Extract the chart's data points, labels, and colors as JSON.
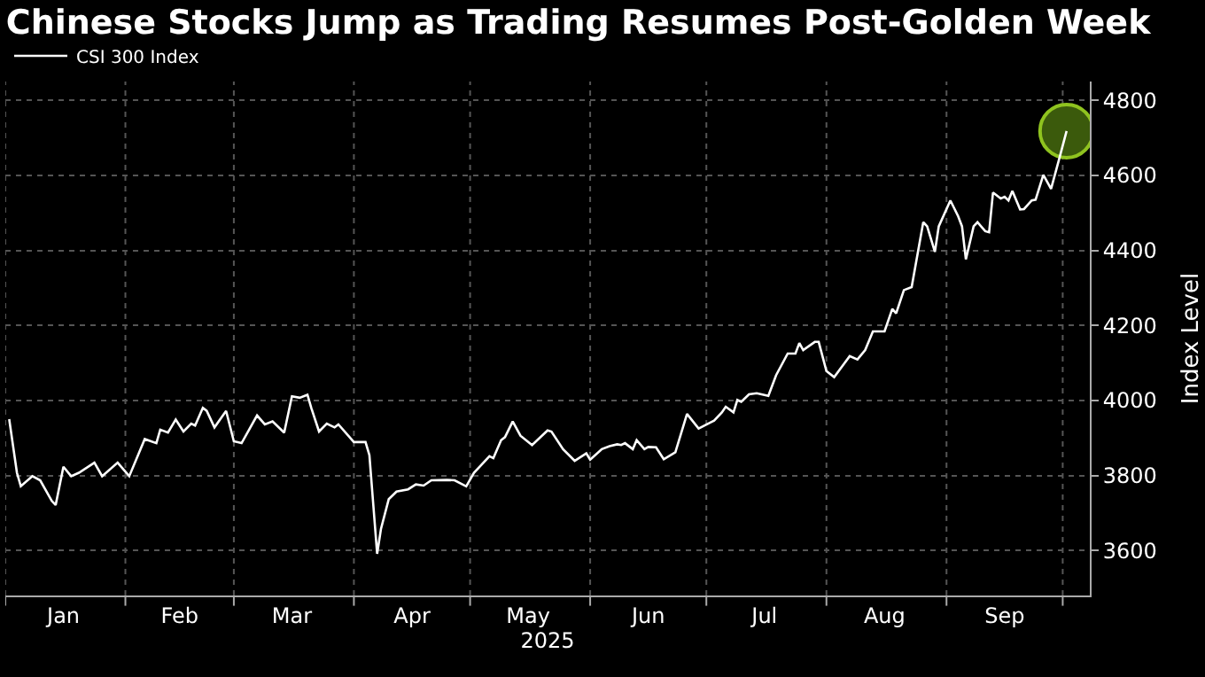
{
  "chart_data": {
    "type": "line",
    "title": "Chinese Stocks Jump as Trading Resumes Post-Golden Week",
    "xlabel": "2025",
    "ylabel": "Index Level",
    "legend": "top left",
    "grid": true,
    "marker": "none",
    "line_style": "solid",
    "xlim": [
      "2025-01-01",
      "2025-10-08"
    ],
    "xticks": [
      {
        "value": "2025-01-01",
        "label": null
      },
      {
        "value": "2025-01-16",
        "label": "Jan"
      },
      {
        "value": "2025-02-01",
        "label": null
      },
      {
        "value": "2025-02-15",
        "label": "Feb"
      },
      {
        "value": "2025-03-01",
        "label": null
      },
      {
        "value": "2025-03-16",
        "label": "Mar"
      },
      {
        "value": "2025-04-01",
        "label": null
      },
      {
        "value": "2025-04-16",
        "label": "Apr"
      },
      {
        "value": "2025-05-01",
        "label": null
      },
      {
        "value": "2025-05-16",
        "label": "May"
      },
      {
        "value": "2025-06-01",
        "label": null
      },
      {
        "value": "2025-06-16",
        "label": "Jun"
      },
      {
        "value": "2025-07-01",
        "label": null
      },
      {
        "value": "2025-07-16",
        "label": "Jul"
      },
      {
        "value": "2025-08-01",
        "label": null
      },
      {
        "value": "2025-08-16",
        "label": "Aug"
      },
      {
        "value": "2025-09-01",
        "label": null
      },
      {
        "value": "2025-09-16",
        "label": "Sep"
      },
      {
        "value": "2025-10-01",
        "label": null
      }
    ],
    "ylim": [
      3480,
      4850
    ],
    "yticks": [
      3600,
      3800,
      4000,
      4200,
      4400,
      4600,
      4800
    ],
    "series": [
      {
        "name": "CSI 300 Index",
        "color": "#ffffff",
        "x": [
          "2025-01-02",
          "2025-01-04",
          "2025-01-05",
          "2025-01-08",
          "2025-01-10",
          "2025-01-13",
          "2025-01-14",
          "2025-01-16",
          "2025-01-18",
          "2025-01-20",
          "2025-01-24",
          "2025-01-26",
          "2025-01-30",
          "2025-02-02",
          "2025-02-06",
          "2025-02-09",
          "2025-02-10",
          "2025-02-12",
          "2025-02-14",
          "2025-02-16",
          "2025-02-18",
          "2025-02-19",
          "2025-02-21",
          "2025-02-22",
          "2025-02-24",
          "2025-02-27",
          "2025-03-01",
          "2025-03-03",
          "2025-03-07",
          "2025-03-09",
          "2025-03-11",
          "2025-03-14",
          "2025-03-16",
          "2025-03-18",
          "2025-03-20",
          "2025-03-21",
          "2025-03-23",
          "2025-03-25",
          "2025-03-27",
          "2025-03-28",
          "2025-04-01",
          "2025-04-04",
          "2025-04-05",
          "2025-04-07",
          "2025-04-08",
          "2025-04-10",
          "2025-04-12",
          "2025-04-15",
          "2025-04-17",
          "2025-04-19",
          "2025-04-21",
          "2025-04-25",
          "2025-04-27",
          "2025-04-30",
          "2025-05-02",
          "2025-05-06",
          "2025-05-07",
          "2025-05-09",
          "2025-05-10",
          "2025-05-12",
          "2025-05-14",
          "2025-05-17",
          "2025-05-21",
          "2025-05-22",
          "2025-05-25",
          "2025-05-28",
          "2025-05-31",
          "2025-06-01",
          "2025-06-04",
          "2025-06-06",
          "2025-06-08",
          "2025-06-09",
          "2025-06-10",
          "2025-06-12",
          "2025-06-13",
          "2025-06-15",
          "2025-06-16",
          "2025-06-18",
          "2025-06-20",
          "2025-06-23",
          "2025-06-26",
          "2025-06-29",
          "2025-07-02",
          "2025-07-03",
          "2025-07-05",
          "2025-07-06",
          "2025-07-08",
          "2025-07-09",
          "2025-07-10",
          "2025-07-12",
          "2025-07-14",
          "2025-07-17",
          "2025-07-19",
          "2025-07-22",
          "2025-07-24",
          "2025-07-25",
          "2025-07-26",
          "2025-07-29",
          "2025-07-30",
          "2025-08-01",
          "2025-08-03",
          "2025-08-05",
          "2025-08-07",
          "2025-08-09",
          "2025-08-11",
          "2025-08-13",
          "2025-08-16",
          "2025-08-18",
          "2025-08-19",
          "2025-08-21",
          "2025-08-23",
          "2025-08-26",
          "2025-08-27",
          "2025-08-29",
          "2025-08-30",
          "2025-09-02",
          "2025-09-04",
          "2025-09-05",
          "2025-09-06",
          "2025-09-08",
          "2025-09-09",
          "2025-09-11",
          "2025-09-12",
          "2025-09-13",
          "2025-09-15",
          "2025-09-16",
          "2025-09-17",
          "2025-09-18",
          "2025-09-20",
          "2025-09-21",
          "2025-09-23",
          "2025-09-24",
          "2025-09-26",
          "2025-09-28",
          "2025-09-30",
          "2025-10-02"
        ],
        "values": [
          3950,
          3807,
          3771,
          3798,
          3787,
          3732,
          3721,
          3823,
          3798,
          3807,
          3834,
          3798,
          3834,
          3798,
          3897,
          3886,
          3922,
          3914,
          3949,
          3917,
          3938,
          3933,
          3980,
          3972,
          3928,
          3972,
          3891,
          3886,
          3960,
          3936,
          3944,
          3914,
          4011,
          4007,
          4015,
          3980,
          3917,
          3938,
          3928,
          3936,
          3889,
          3889,
          3854,
          3591,
          3658,
          3737,
          3757,
          3763,
          3776,
          3773,
          3787,
          3788,
          3787,
          3771,
          3807,
          3851,
          3846,
          3894,
          3902,
          3944,
          3906,
          3881,
          3920,
          3917,
          3870,
          3839,
          3859,
          3842,
          3870,
          3878,
          3883,
          3881,
          3886,
          3870,
          3894,
          3870,
          3876,
          3875,
          3843,
          3862,
          3964,
          3925,
          3941,
          3946,
          3968,
          3983,
          3968,
          4001,
          3996,
          4016,
          4019,
          4012,
          4067,
          4125,
          4125,
          4153,
          4134,
          4156,
          4156,
          4078,
          4062,
          4090,
          4118,
          4109,
          4134,
          4184,
          4184,
          4244,
          4232,
          4294,
          4302,
          4475,
          4464,
          4396,
          4464,
          4533,
          4491,
          4464,
          4376,
          4464,
          4475,
          4451,
          4448,
          4554,
          4538,
          4543,
          4533,
          4558,
          4509,
          4510,
          4533,
          4535,
          4601,
          4564,
          4640,
          4718
        ]
      },
      {
        "type": "scatter",
        "marker": "circle",
        "color": "#3b5a0c",
        "x": [
          "2025-10-02"
        ],
        "values": [
          4718
        ]
      }
    ]
  }
}
